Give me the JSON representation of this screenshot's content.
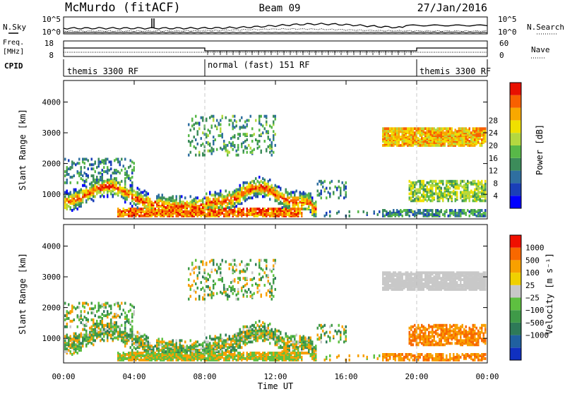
{
  "header": {
    "station": "McMurdo (fitACF)",
    "beam": "Beam 09",
    "date": "27/Jan/2016"
  },
  "noise_panel": {
    "left_label": "N.Sky",
    "left_ticks": [
      "10^5",
      "10^0"
    ],
    "right_ticks": [
      "10^5",
      "10^0"
    ],
    "right_label": "N.Search"
  },
  "freq_panel": {
    "left_label_line1": "Freq.",
    "left_label_line2": "[MHz]",
    "left_ticks": [
      "18",
      "8"
    ],
    "right_ticks": [
      "60",
      "0"
    ],
    "right_label": "Nave"
  },
  "cpid": {
    "label": "CPID",
    "segments": [
      {
        "label": "themis 3300 RF"
      },
      {
        "label": "normal (fast) 151 RF"
      },
      {
        "label": "themis 3300 RF"
      }
    ]
  },
  "chart_data": [
    {
      "type": "heatmap",
      "ylabel": "Slant Range [km]",
      "xlabel": "Time UT",
      "x_ticks": [
        "00:00",
        "04:00",
        "08:00",
        "12:00",
        "16:00",
        "20:00",
        "00:00"
      ],
      "y_ticks": [
        1000,
        2000,
        3000,
        4000
      ],
      "ylim": [
        200,
        4700
      ],
      "xlim_hours": [
        0,
        24
      ],
      "colorbar": {
        "label": "Power [dB]",
        "ticks": [
          "4",
          "8",
          "12",
          "16",
          "20",
          "24",
          "28"
        ],
        "colors": [
          "#0000ff",
          "#1a3fb8",
          "#2f6fa0",
          "#3c8c5a",
          "#58b848",
          "#b4d840",
          "#f0e000",
          "#f8a800",
          "#f86000",
          "#e81000"
        ]
      }
    },
    {
      "type": "heatmap",
      "ylabel": "Slant Range [km]",
      "xlabel": "Time UT",
      "x_ticks": [
        "00:00",
        "04:00",
        "08:00",
        "12:00",
        "16:00",
        "20:00",
        "00:00"
      ],
      "y_ticks": [
        1000,
        2000,
        3000,
        4000
      ],
      "ylim": [
        200,
        4700
      ],
      "xlim_hours": [
        0,
        24
      ],
      "colorbar": {
        "label": "Velocity [m s⁻¹]",
        "ticks": [
          "1000",
          "500",
          "100",
          "25",
          "−25",
          "−100",
          "−500",
          "−1000"
        ],
        "colors": [
          "#1030c0",
          "#2060a0",
          "#2e7a58",
          "#3f9a48",
          "#5ec040",
          "#c8c8c8",
          "#f0d000",
          "#f8a000",
          "#f86800",
          "#f01000"
        ]
      }
    }
  ]
}
